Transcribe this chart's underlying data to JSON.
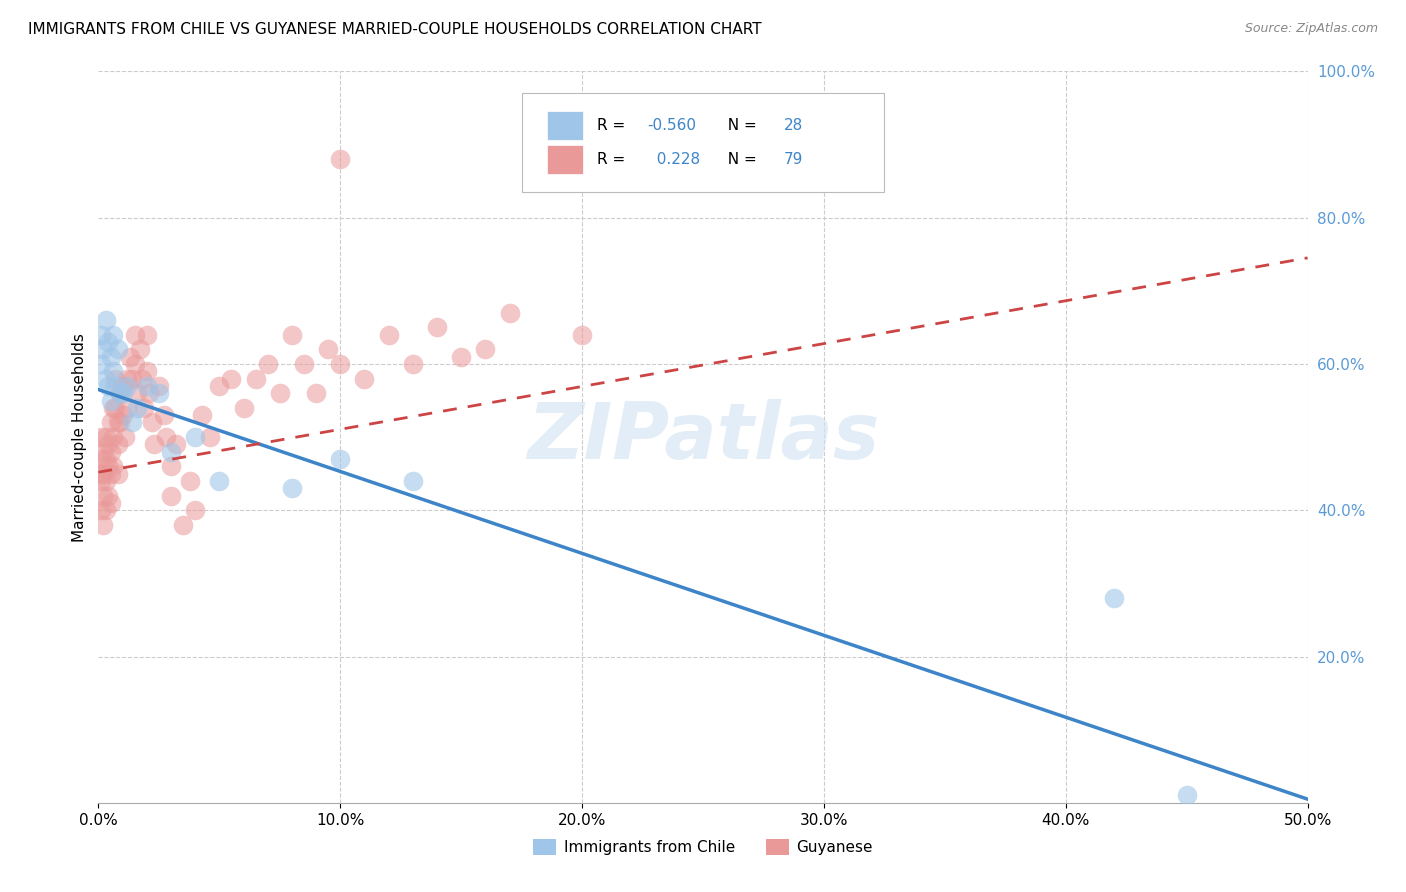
{
  "title": "IMMIGRANTS FROM CHILE VS GUYANESE MARRIED-COUPLE HOUSEHOLDS CORRELATION CHART",
  "source": "Source: ZipAtlas.com",
  "ylabel": "Married-couple Households",
  "legend_label_blue": "Immigrants from Chile",
  "legend_label_pink": "Guyanese",
  "R_blue": -0.56,
  "N_blue": 28,
  "R_pink": 0.228,
  "N_pink": 79,
  "color_blue": "#9fc5e8",
  "color_pink": "#ea9999",
  "color_blue_line": "#3d85c8",
  "color_pink_line": "#cc4444",
  "xmin": 0.0,
  "xmax": 0.5,
  "ymin": 0.0,
  "ymax": 1.0,
  "blue_line_x0": 0.0,
  "blue_line_y0": 0.565,
  "blue_line_x1": 0.5,
  "blue_line_y1": 0.005,
  "pink_line_x0": 0.0,
  "pink_line_y0": 0.452,
  "pink_line_x1": 0.5,
  "pink_line_y1": 0.745,
  "blue_x": [
    0.001,
    0.001,
    0.002,
    0.003,
    0.003,
    0.004,
    0.004,
    0.005,
    0.005,
    0.006,
    0.006,
    0.007,
    0.008,
    0.009,
    0.01,
    0.012,
    0.014,
    0.016,
    0.02,
    0.025,
    0.03,
    0.04,
    0.05,
    0.08,
    0.1,
    0.13,
    0.42,
    0.45
  ],
  "blue_y": [
    0.6,
    0.64,
    0.62,
    0.58,
    0.66,
    0.63,
    0.57,
    0.61,
    0.55,
    0.64,
    0.59,
    0.57,
    0.62,
    0.56,
    0.56,
    0.57,
    0.52,
    0.54,
    0.57,
    0.56,
    0.48,
    0.5,
    0.44,
    0.43,
    0.47,
    0.44,
    0.28,
    0.01
  ],
  "pink_x": [
    0.001,
    0.001,
    0.001,
    0.001,
    0.001,
    0.002,
    0.002,
    0.002,
    0.002,
    0.003,
    0.003,
    0.003,
    0.003,
    0.004,
    0.004,
    0.004,
    0.005,
    0.005,
    0.005,
    0.005,
    0.006,
    0.006,
    0.006,
    0.007,
    0.007,
    0.008,
    0.008,
    0.008,
    0.009,
    0.009,
    0.01,
    0.01,
    0.011,
    0.012,
    0.012,
    0.013,
    0.014,
    0.015,
    0.015,
    0.016,
    0.017,
    0.018,
    0.019,
    0.02,
    0.02,
    0.021,
    0.022,
    0.023,
    0.025,
    0.027,
    0.028,
    0.03,
    0.03,
    0.032,
    0.035,
    0.038,
    0.04,
    0.043,
    0.046,
    0.05,
    0.055,
    0.06,
    0.065,
    0.07,
    0.075,
    0.08,
    0.085,
    0.09,
    0.095,
    0.1,
    0.11,
    0.12,
    0.13,
    0.14,
    0.15,
    0.16,
    0.17,
    0.2,
    0.1
  ],
  "pink_y": [
    0.45,
    0.5,
    0.47,
    0.44,
    0.4,
    0.48,
    0.45,
    0.42,
    0.38,
    0.5,
    0.47,
    0.44,
    0.4,
    0.49,
    0.46,
    0.42,
    0.52,
    0.48,
    0.45,
    0.41,
    0.54,
    0.5,
    0.46,
    0.58,
    0.54,
    0.52,
    0.49,
    0.45,
    0.56,
    0.52,
    0.57,
    0.53,
    0.5,
    0.58,
    0.54,
    0.61,
    0.58,
    0.64,
    0.6,
    0.56,
    0.62,
    0.58,
    0.54,
    0.64,
    0.59,
    0.56,
    0.52,
    0.49,
    0.57,
    0.53,
    0.5,
    0.46,
    0.42,
    0.49,
    0.38,
    0.44,
    0.4,
    0.53,
    0.5,
    0.57,
    0.58,
    0.54,
    0.58,
    0.6,
    0.56,
    0.64,
    0.6,
    0.56,
    0.62,
    0.6,
    0.58,
    0.64,
    0.6,
    0.65,
    0.61,
    0.62,
    0.67,
    0.64,
    0.88
  ]
}
